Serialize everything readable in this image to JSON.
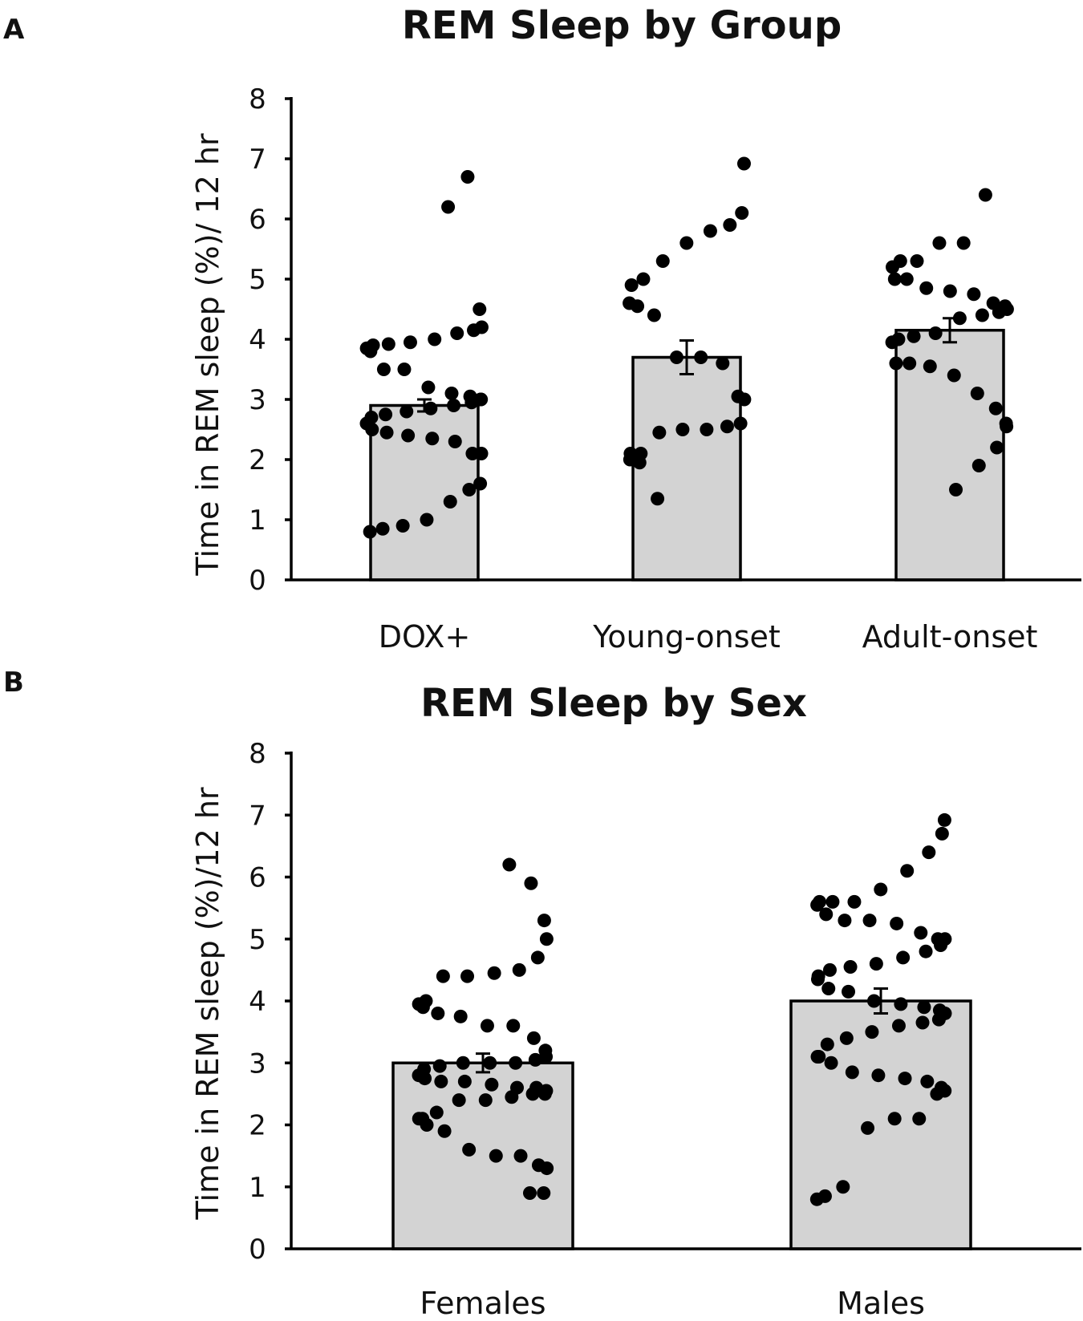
{
  "chart_data": [
    {
      "panel": "A",
      "type": "bar",
      "title": "REM Sleep by Group",
      "xlabel": "",
      "ylabel": "Time in REM sleep (%)/ 12 hr",
      "ylim": [
        0,
        8
      ],
      "yticks": [
        0,
        1,
        2,
        3,
        4,
        5,
        6,
        7,
        8
      ],
      "categories": [
        "DOX+",
        "Young-onset",
        "Adult-onset"
      ],
      "values": [
        2.9,
        3.7,
        4.15
      ],
      "errors": [
        0.1,
        0.28,
        0.2
      ],
      "points": [
        [
          6.2,
          6.7,
          4.5,
          4.2,
          4.15,
          4.1,
          4.0,
          3.95,
          3.92,
          3.9,
          3.85,
          3.8,
          3.5,
          3.5,
          3.2,
          3.1,
          3.05,
          3.0,
          3.0,
          2.95,
          2.9,
          2.85,
          2.8,
          2.75,
          2.7,
          2.6,
          2.5,
          2.45,
          2.4,
          2.35,
          2.3,
          2.1,
          2.1,
          1.6,
          1.5,
          1.3,
          1.0,
          0.9,
          0.85,
          0.8
        ],
        [
          6.92,
          6.1,
          5.9,
          5.8,
          5.6,
          5.3,
          5.0,
          4.9,
          4.6,
          4.55,
          4.4,
          3.7,
          3.7,
          3.6,
          3.05,
          3.0,
          2.6,
          2.55,
          2.5,
          2.5,
          2.45,
          2.1,
          2.1,
          2.0,
          1.95,
          1.35
        ],
        [
          6.4,
          5.6,
          5.6,
          5.3,
          5.3,
          5.2,
          5.0,
          5.0,
          4.85,
          4.8,
          4.75,
          4.6,
          4.55,
          4.5,
          4.45,
          4.4,
          4.35,
          4.1,
          4.05,
          4.0,
          3.95,
          3.6,
          3.6,
          3.55,
          3.4,
          3.1,
          2.85,
          2.6,
          2.55,
          2.2,
          1.9,
          1.5
        ]
      ]
    },
    {
      "panel": "B",
      "type": "bar",
      "title": "REM Sleep by Sex",
      "xlabel": "",
      "ylabel": "Time in REM sleep (%)/12 hr",
      "ylim": [
        0,
        8
      ],
      "yticks": [
        0,
        1,
        2,
        3,
        4,
        5,
        6,
        7,
        8
      ],
      "categories": [
        "Females",
        "Males"
      ],
      "values": [
        3.0,
        4.0
      ],
      "errors": [
        0.15,
        0.2
      ],
      "points": [
        [
          6.2,
          5.9,
          5.3,
          5.0,
          4.7,
          4.5,
          4.45,
          4.4,
          4.4,
          4.0,
          3.95,
          3.9,
          3.8,
          3.75,
          3.6,
          3.6,
          3.4,
          3.2,
          3.1,
          3.05,
          3.0,
          3.0,
          3.0,
          2.95,
          2.9,
          2.8,
          2.75,
          2.7,
          2.7,
          2.65,
          2.6,
          2.6,
          2.55,
          2.5,
          2.5,
          2.45,
          2.4,
          2.4,
          2.2,
          2.1,
          2.1,
          2.0,
          1.9,
          1.6,
          1.5,
          1.5,
          1.35,
          1.3,
          0.9,
          0.9
        ],
        [
          6.92,
          6.7,
          6.4,
          6.1,
          5.8,
          5.6,
          5.6,
          5.6,
          5.55,
          5.4,
          5.3,
          5.3,
          5.25,
          5.1,
          5.0,
          5.0,
          4.9,
          4.8,
          4.7,
          4.6,
          4.55,
          4.5,
          4.4,
          4.35,
          4.2,
          4.15,
          4.0,
          3.95,
          3.9,
          3.85,
          3.8,
          3.7,
          3.65,
          3.6,
          3.5,
          3.4,
          3.3,
          3.1,
          3.1,
          3.0,
          2.85,
          2.8,
          2.75,
          2.7,
          2.6,
          2.55,
          2.5,
          2.1,
          2.1,
          1.95,
          1.0,
          0.85,
          0.8
        ]
      ]
    }
  ]
}
